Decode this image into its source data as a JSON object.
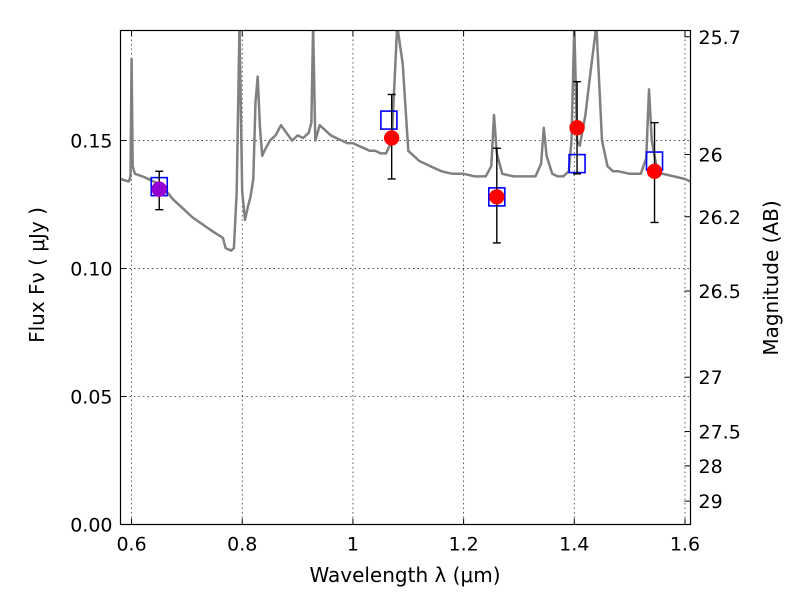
{
  "chart_data": {
    "type": "scatter",
    "title": "",
    "xlabel": "Wavelength  λ (μm)",
    "ylabel": "Flux  Fν  ( μJy )",
    "y2label": "Magnitude (AB)",
    "xlim": [
      0.58,
      1.61
    ],
    "ylim": [
      0.0,
      0.193
    ],
    "grid": true,
    "x_ticks": [
      0.6,
      0.8,
      1.0,
      1.2,
      1.4,
      1.6
    ],
    "x_tick_labels": [
      "0.6",
      "0.8",
      "1",
      "1.2",
      "1.4",
      "1.6"
    ],
    "y_ticks": [
      0.0,
      0.05,
      0.1,
      0.15
    ],
    "y_tick_labels": [
      "0.00",
      "0.05",
      "0.10",
      "0.15"
    ],
    "y2_ticks": [
      {
        "label": "25.7",
        "mag": 25.7
      },
      {
        "label": "26",
        "mag": 26.0
      },
      {
        "label": "26.2",
        "mag": 26.2
      },
      {
        "label": "26.5",
        "mag": 26.5
      },
      {
        "label": "27",
        "mag": 27.0
      },
      {
        "label": "27.5",
        "mag": 27.5
      },
      {
        "label": "28",
        "mag": 28.0
      },
      {
        "label": "29",
        "mag": 29.0
      }
    ],
    "series": [
      {
        "kind": "line",
        "color": "#808080",
        "points": [
          [
            0.58,
            0.135
          ],
          [
            0.595,
            0.134
          ],
          [
            0.598,
            0.136
          ],
          [
            0.6,
            0.182
          ],
          [
            0.602,
            0.14
          ],
          [
            0.606,
            0.137
          ],
          [
            0.62,
            0.136
          ],
          [
            0.64,
            0.134
          ],
          [
            0.65,
            0.133
          ],
          [
            0.66,
            0.131
          ],
          [
            0.675,
            0.127
          ],
          [
            0.69,
            0.124
          ],
          [
            0.71,
            0.12
          ],
          [
            0.73,
            0.117
          ],
          [
            0.75,
            0.114
          ],
          [
            0.765,
            0.112
          ],
          [
            0.77,
            0.108
          ],
          [
            0.78,
            0.107
          ],
          [
            0.785,
            0.108
          ],
          [
            0.79,
            0.13
          ],
          [
            0.795,
            0.195
          ],
          [
            0.8,
            0.13
          ],
          [
            0.805,
            0.119
          ],
          [
            0.81,
            0.124
          ],
          [
            0.815,
            0.128
          ],
          [
            0.82,
            0.135
          ],
          [
            0.824,
            0.165
          ],
          [
            0.828,
            0.175
          ],
          [
            0.832,
            0.155
          ],
          [
            0.836,
            0.144
          ],
          [
            0.84,
            0.146
          ],
          [
            0.85,
            0.15
          ],
          [
            0.86,
            0.152
          ],
          [
            0.87,
            0.156
          ],
          [
            0.88,
            0.153
          ],
          [
            0.89,
            0.15
          ],
          [
            0.9,
            0.152
          ],
          [
            0.91,
            0.151
          ],
          [
            0.92,
            0.153
          ],
          [
            0.925,
            0.157
          ],
          [
            0.928,
            0.195
          ],
          [
            0.932,
            0.15
          ],
          [
            0.94,
            0.156
          ],
          [
            0.95,
            0.154
          ],
          [
            0.96,
            0.152
          ],
          [
            0.97,
            0.151
          ],
          [
            0.98,
            0.15
          ],
          [
            0.99,
            0.149
          ],
          [
            1.0,
            0.149
          ],
          [
            1.01,
            0.148
          ],
          [
            1.02,
            0.147
          ],
          [
            1.03,
            0.146
          ],
          [
            1.04,
            0.146
          ],
          [
            1.05,
            0.145
          ],
          [
            1.06,
            0.145
          ],
          [
            1.07,
            0.15
          ],
          [
            1.08,
            0.195
          ],
          [
            1.09,
            0.18
          ],
          [
            1.1,
            0.146
          ],
          [
            1.11,
            0.144
          ],
          [
            1.12,
            0.142
          ],
          [
            1.14,
            0.14
          ],
          [
            1.16,
            0.138
          ],
          [
            1.18,
            0.137
          ],
          [
            1.2,
            0.137
          ],
          [
            1.22,
            0.136
          ],
          [
            1.24,
            0.136
          ],
          [
            1.25,
            0.14
          ],
          [
            1.255,
            0.16
          ],
          [
            1.26,
            0.145
          ],
          [
            1.27,
            0.137
          ],
          [
            1.29,
            0.136
          ],
          [
            1.31,
            0.136
          ],
          [
            1.33,
            0.136
          ],
          [
            1.34,
            0.141
          ],
          [
            1.345,
            0.155
          ],
          [
            1.35,
            0.144
          ],
          [
            1.36,
            0.137
          ],
          [
            1.37,
            0.136
          ],
          [
            1.38,
            0.136
          ],
          [
            1.39,
            0.138
          ],
          [
            1.395,
            0.15
          ],
          [
            1.4,
            0.195
          ],
          [
            1.405,
            0.15
          ],
          [
            1.41,
            0.148
          ],
          [
            1.42,
            0.16
          ],
          [
            1.43,
            0.178
          ],
          [
            1.44,
            0.195
          ],
          [
            1.45,
            0.15
          ],
          [
            1.46,
            0.14
          ],
          [
            1.47,
            0.138
          ],
          [
            1.48,
            0.138
          ],
          [
            1.5,
            0.137
          ],
          [
            1.52,
            0.137
          ],
          [
            1.53,
            0.143
          ],
          [
            1.535,
            0.17
          ],
          [
            1.54,
            0.15
          ],
          [
            1.55,
            0.138
          ],
          [
            1.56,
            0.137
          ],
          [
            1.58,
            0.136
          ],
          [
            1.6,
            0.135
          ],
          [
            1.61,
            0.134
          ]
        ]
      },
      {
        "kind": "scatter",
        "marker": "open-square",
        "color": "#0000ff",
        "points": [
          [
            0.65,
            0.132
          ],
          [
            1.065,
            0.158
          ],
          [
            1.26,
            0.128
          ],
          [
            1.405,
            0.141
          ],
          [
            1.545,
            0.142
          ]
        ]
      },
      {
        "kind": "scatter",
        "marker": "circle",
        "color": "#ff0000",
        "points": [
          [
            0.65,
            0.131
          ],
          [
            1.07,
            0.151
          ],
          [
            1.26,
            0.128
          ],
          [
            1.405,
            0.155
          ],
          [
            1.545,
            0.138
          ]
        ],
        "errors": [
          [
            0.123,
            0.138
          ],
          [
            0.135,
            0.168
          ],
          [
            0.11,
            0.147
          ],
          [
            0.137,
            0.173
          ],
          [
            0.118,
            0.157
          ]
        ]
      },
      {
        "kind": "scatter",
        "marker": "circle",
        "color": "#9400d3",
        "points": [
          [
            0.65,
            0.131
          ]
        ]
      }
    ]
  }
}
